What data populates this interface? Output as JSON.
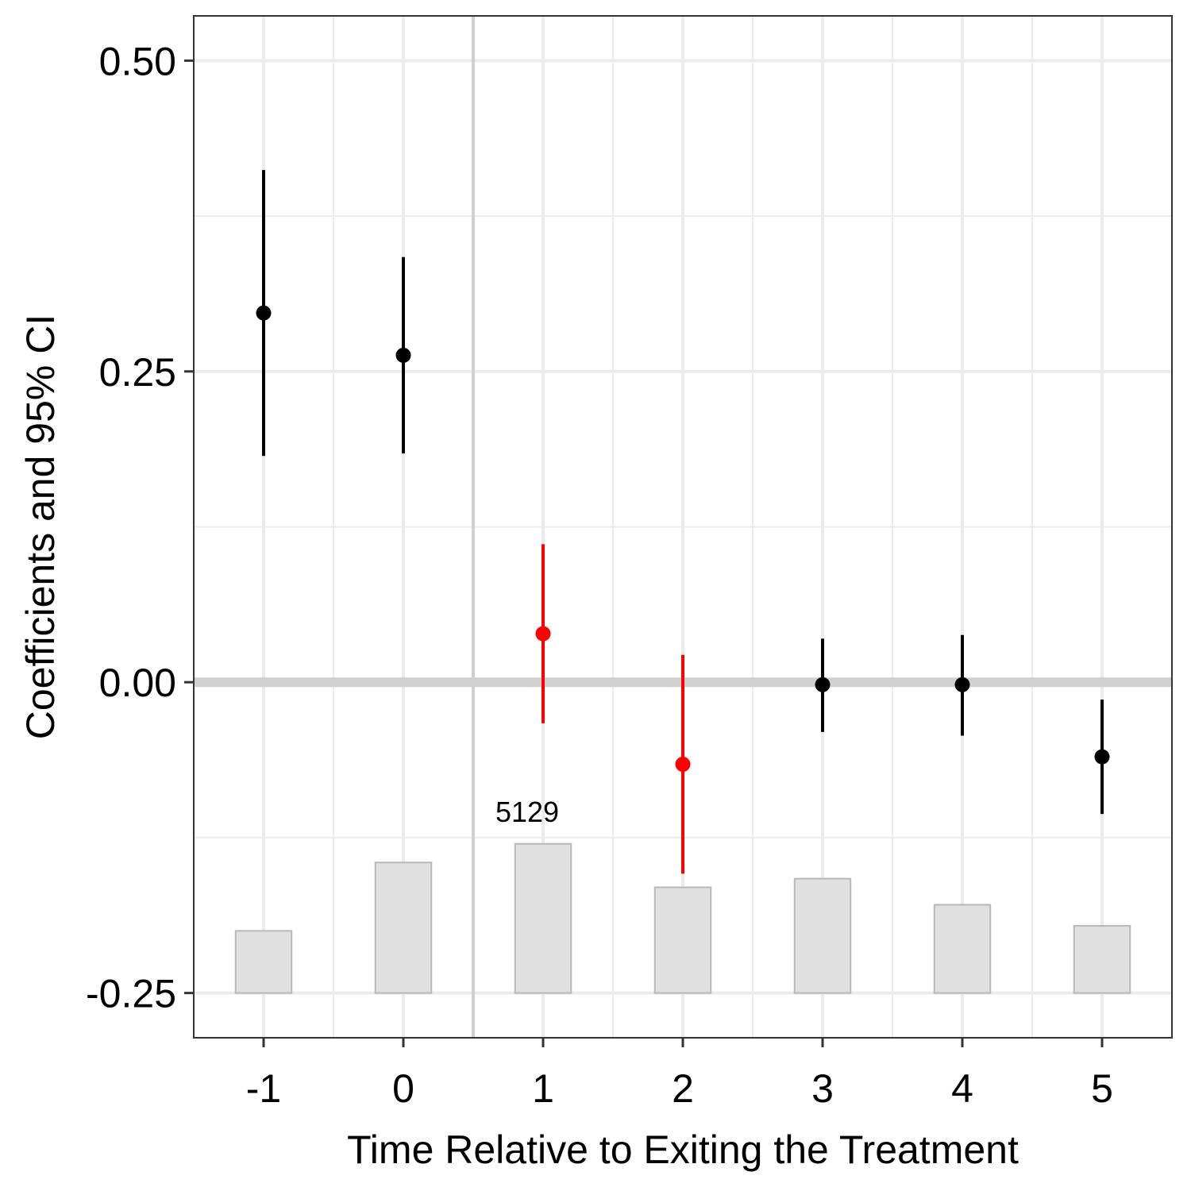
{
  "chart_data": {
    "type": "scatter",
    "xlabel": "Time Relative to Exiting the Treatment",
    "ylabel": "Coefficients and 95% CI",
    "x_ticks": [
      "-1",
      "0",
      "1",
      "2",
      "3",
      "4",
      "5"
    ],
    "y_ticks": [
      "-0.25",
      "0.00",
      "0.25",
      "0.50"
    ],
    "xlim": [
      -1.5,
      5.5
    ],
    "ylim": [
      -0.286,
      0.536
    ],
    "grid": true,
    "reference_lines": {
      "x": 0.5,
      "y": 0.0
    },
    "points": [
      {
        "x": -1,
        "y": 0.297,
        "lower": 0.182,
        "upper": 0.412,
        "highlight": false
      },
      {
        "x": 0,
        "y": 0.263,
        "lower": 0.184,
        "upper": 0.342,
        "highlight": false
      },
      {
        "x": 1,
        "y": 0.039,
        "lower": -0.033,
        "upper": 0.111,
        "highlight": true
      },
      {
        "x": 2,
        "y": -0.066,
        "lower": -0.154,
        "upper": 0.022,
        "highlight": true
      },
      {
        "x": 3,
        "y": -0.002,
        "lower": -0.04,
        "upper": 0.035,
        "highlight": false
      },
      {
        "x": 4,
        "y": -0.002,
        "lower": -0.043,
        "upper": 0.038,
        "highlight": false
      },
      {
        "x": 5,
        "y": -0.06,
        "lower": -0.106,
        "upper": -0.014,
        "highlight": false
      }
    ],
    "bars": {
      "baseline": -0.25,
      "values": [
        -0.2,
        -0.145,
        -0.13,
        -0.165,
        -0.158,
        -0.179,
        -0.196
      ],
      "labeled_index": 2,
      "label": "5129"
    },
    "colors": {
      "default": "#000000",
      "highlight": "#ff0000",
      "bar_fill": "#e0e0e0",
      "bar_stroke": "#b8b8b8",
      "grid": "#ebebeb",
      "reference": "#d0d0d0",
      "panel_border": "#333333"
    }
  }
}
